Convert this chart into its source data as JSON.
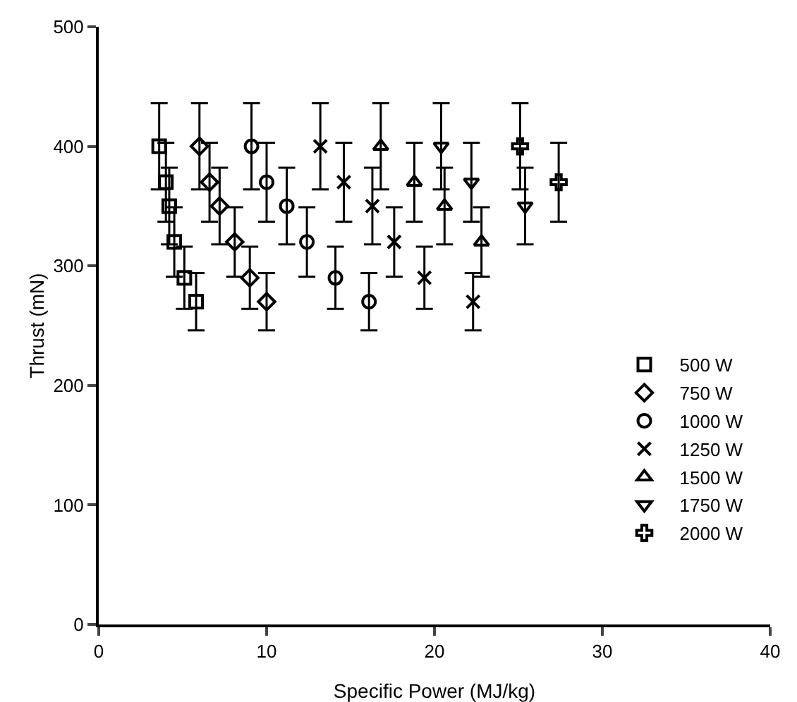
{
  "chart_data": {
    "type": "scatter",
    "xlabel": "Specific Power (MJ/kg)",
    "ylabel": "Thrust (mN)",
    "xlim": [
      0,
      40
    ],
    "xticks": [
      0,
      10,
      20,
      30,
      40
    ],
    "ylim": [
      0,
      500
    ],
    "yticks": [
      0,
      100,
      200,
      300,
      400,
      500
    ],
    "grid": false,
    "legend": "bottom right",
    "series": [
      {
        "name": "500 W",
        "color": "#000000",
        "marker": "square",
        "x": [
          3.6,
          4.0,
          4.2,
          4.5,
          5.1,
          5.8
        ],
        "values": [
          400,
          370,
          350,
          320,
          290,
          270
        ],
        "errors": [
          36,
          33,
          32,
          29,
          26,
          24
        ]
      },
      {
        "name": "750 W",
        "color": "#000000",
        "marker": "diamond",
        "x": [
          6.0,
          6.6,
          7.2,
          8.1,
          9.0,
          10.0
        ],
        "values": [
          400,
          370,
          350,
          320,
          290,
          270
        ],
        "errors": [
          36,
          33,
          32,
          29,
          26,
          24
        ]
      },
      {
        "name": "1000 W",
        "color": "#000000",
        "marker": "circle",
        "x": [
          9.1,
          10.0,
          11.2,
          12.4,
          14.1,
          16.1
        ],
        "values": [
          400,
          370,
          350,
          320,
          290,
          270
        ],
        "errors": [
          36,
          33,
          32,
          29,
          26,
          24
        ]
      },
      {
        "name": "1250 W",
        "color": "#000000",
        "marker": "x",
        "x": [
          13.2,
          14.6,
          16.3,
          17.6,
          19.4,
          22.3
        ],
        "values": [
          400,
          370,
          350,
          320,
          290,
          270
        ],
        "errors": [
          36,
          33,
          32,
          29,
          26,
          24
        ]
      },
      {
        "name": "1500 W",
        "color": "#000000",
        "marker": "triangle",
        "x": [
          16.8,
          18.8,
          20.6,
          22.8
        ],
        "values": [
          400,
          370,
          350,
          320
        ],
        "errors": [
          36,
          33,
          32,
          29
        ]
      },
      {
        "name": "1750 W",
        "color": "#000000",
        "marker": "triangle-down",
        "x": [
          20.4,
          22.2,
          25.4
        ],
        "values": [
          400,
          370,
          350
        ],
        "errors": [
          36,
          33,
          32
        ]
      },
      {
        "name": "2000 W",
        "color": "#000000",
        "marker": "cross",
        "x": [
          25.1,
          27.4
        ],
        "values": [
          400,
          370
        ],
        "errors": [
          36,
          33
        ]
      }
    ]
  }
}
